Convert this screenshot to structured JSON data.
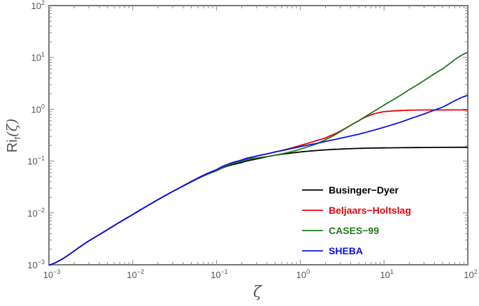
{
  "chart_data": {
    "type": "line",
    "xscale": "log",
    "yscale": "log",
    "xlim": [
      0.001,
      100
    ],
    "ylim": [
      0.001,
      100
    ],
    "xlabel": "ζ",
    "ylabel_main": "Ri",
    "ylabel_sub": "f",
    "ylabel_arg": "(ζ)",
    "x_ticks": [
      {
        "base": "10",
        "exp": "−3",
        "value": 0.001
      },
      {
        "base": "10",
        "exp": "−2",
        "value": 0.01
      },
      {
        "base": "10",
        "exp": "−1",
        "value": 0.1
      },
      {
        "base": "10",
        "exp": "0",
        "value": 1
      },
      {
        "base": "10",
        "exp": "1",
        "value": 10
      },
      {
        "base": "10",
        "exp": "2",
        "value": 100
      }
    ],
    "y_ticks": [
      {
        "base": "10",
        "exp": "−3",
        "value": 0.001
      },
      {
        "base": "10",
        "exp": "−2",
        "value": 0.01
      },
      {
        "base": "10",
        "exp": "−1",
        "value": 0.1
      },
      {
        "base": "10",
        "exp": "0",
        "value": 1
      },
      {
        "base": "10",
        "exp": "1",
        "value": 10
      },
      {
        "base": "10",
        "exp": "2",
        "value": 100
      }
    ],
    "legend_position": "bottom-right",
    "series": [
      {
        "name": "Businger−Dyer",
        "color": "#000000",
        "x": [
          0.001,
          0.003,
          0.01,
          0.03,
          0.1,
          0.2,
          0.3,
          0.5,
          1,
          2,
          5,
          10,
          30,
          100
        ],
        "y": [
          0.00098,
          0.0029,
          0.0093,
          0.026,
          0.065,
          0.094,
          0.11,
          0.13,
          0.15,
          0.165,
          0.176,
          0.18,
          0.183,
          0.185
        ]
      },
      {
        "name": "Beljaars−Holtslag",
        "color": "#e8000b",
        "x": [
          0.001,
          0.003,
          0.01,
          0.03,
          0.1,
          0.2,
          0.3,
          0.5,
          1,
          2,
          3,
          5,
          7,
          10,
          20,
          50,
          100
        ],
        "y": [
          0.00098,
          0.0029,
          0.0093,
          0.026,
          0.068,
          0.1,
          0.125,
          0.15,
          0.2,
          0.28,
          0.38,
          0.6,
          0.78,
          0.9,
          0.96,
          0.97,
          0.97
        ]
      },
      {
        "name": "CASES−99",
        "color": "#1f7a1f",
        "x": [
          0.001,
          0.003,
          0.01,
          0.03,
          0.1,
          0.2,
          0.3,
          0.5,
          1,
          2,
          5,
          10,
          20,
          50,
          100
        ],
        "y": [
          0.00098,
          0.0029,
          0.0093,
          0.026,
          0.065,
          0.1,
          0.115,
          0.13,
          0.17,
          0.26,
          0.6,
          1.2,
          2.4,
          6,
          12.5
        ]
      },
      {
        "name": "SHEBA",
        "color": "#1010e6",
        "x": [
          0.001,
          0.003,
          0.01,
          0.03,
          0.1,
          0.2,
          0.3,
          0.5,
          1,
          2,
          5,
          10,
          20,
          50,
          100
        ],
        "y": [
          0.00098,
          0.0029,
          0.0093,
          0.026,
          0.068,
          0.105,
          0.125,
          0.15,
          0.19,
          0.24,
          0.33,
          0.45,
          0.65,
          1.1,
          1.85
        ]
      }
    ]
  }
}
